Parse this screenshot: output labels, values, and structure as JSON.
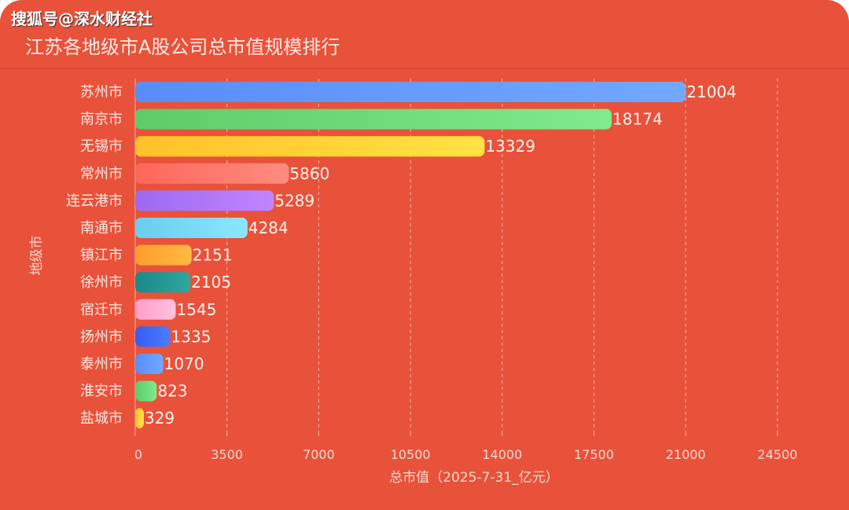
{
  "watermark": "搜狐号@深水财经社",
  "chart_data": {
    "type": "bar",
    "orientation": "horizontal",
    "title": "江苏各地级市A股公司总市值规模排行",
    "xlabel": "总市值（2025-7-31_亿元）",
    "ylabel": "地级市",
    "xlim": [
      0,
      24500
    ],
    "xticks": [
      0,
      3500,
      7000,
      10500,
      14000,
      17500,
      21000,
      24500
    ],
    "grid": "vertical dashed",
    "categories": [
      "苏州市",
      "南京市",
      "无锡市",
      "常州市",
      "连云港市",
      "南通市",
      "镇江市",
      "徐州市",
      "宿迁市",
      "扬州市",
      "泰州市",
      "淮安市",
      "盐城市"
    ],
    "values": [
      21004,
      18174,
      13329,
      5860,
      5289,
      4284,
      2151,
      2105,
      1545,
      1335,
      1070,
      823,
      329
    ],
    "colors": [
      [
        "#5a8cf8",
        "#72a8ff"
      ],
      [
        "#5ccc68",
        "#80ea8c"
      ],
      [
        "#ffc12a",
        "#ffe244"
      ],
      [
        "#ff665a",
        "#ff8b80"
      ],
      [
        "#9c6af0",
        "#c184ff"
      ],
      [
        "#68cdef",
        "#8de6ff"
      ],
      [
        "#ff9c2e",
        "#ffba42"
      ],
      [
        "#168a8a",
        "#2fa79f"
      ],
      [
        "#ff9cc9",
        "#ffc2dd"
      ],
      [
        "#365cf0",
        "#4c7cff"
      ],
      [
        "#5a8cf8",
        "#72a8ff"
      ],
      [
        "#5ccc68",
        "#80ea8c"
      ],
      [
        "#ffc12a",
        "#ffe244"
      ]
    ],
    "background": "#E8523A"
  }
}
